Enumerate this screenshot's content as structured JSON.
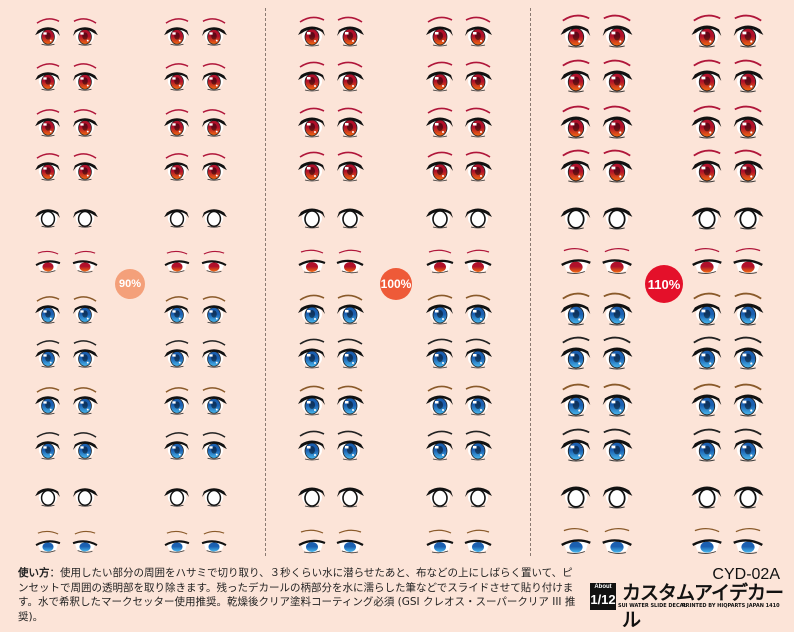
{
  "sections": [
    {
      "badge": "90%",
      "badge_color": "#f4a07a",
      "scale": 0.92
    },
    {
      "badge": "100%",
      "badge_color": "#ee5a38",
      "scale": 1.0
    },
    {
      "badge": "110%",
      "badge_color": "#e4102a",
      "scale": 1.1
    }
  ],
  "eye_rows": [
    {
      "type": "open",
      "iris": "#b0102a",
      "iris_low": "#f06a10",
      "brow": "#b0163a"
    },
    {
      "type": "open",
      "iris": "#b0102a",
      "iris_low": "#f06a10",
      "brow": "#b0163a"
    },
    {
      "type": "open",
      "iris": "#b0102a",
      "iris_low": "#f06a10",
      "brow": "#b0163a"
    },
    {
      "type": "open",
      "iris": "#b0102a",
      "iris_low": "#f06a10",
      "brow": "#b0163a"
    },
    {
      "type": "outline",
      "iris": "#ffffff",
      "iris_low": "#ffffff",
      "brow": "none"
    },
    {
      "type": "half",
      "iris": "#b0102a",
      "iris_low": "#f06a10",
      "brow": "#b0163a"
    },
    {
      "type": "open",
      "iris": "#1a5fb0",
      "iris_low": "#49b8ee",
      "brow": "#8a5a2a"
    },
    {
      "type": "open",
      "iris": "#1a5fb0",
      "iris_low": "#49b8ee",
      "brow": "#222222"
    },
    {
      "type": "open",
      "iris": "#1a5fb0",
      "iris_low": "#49b8ee",
      "brow": "#8a5a2a"
    },
    {
      "type": "open",
      "iris": "#1a5fb0",
      "iris_low": "#49b8ee",
      "brow": "#222222"
    },
    {
      "type": "outline",
      "iris": "#ffffff",
      "iris_low": "#ffffff",
      "brow": "none"
    },
    {
      "type": "half",
      "iris": "#1a5fb0",
      "iris_low": "#49b8ee",
      "brow": "#8a5a2a"
    }
  ],
  "instructions": {
    "label": "使い方",
    "text": "：使用したい部分の周囲をハサミで切り取り、３秒くらい水に潜らせたあと、布などの上にしばらく置いて、ピンセットで周囲の透明部を取り除きます。残ったデカールの柄部分を水に濡らした筆などでスライドさせて貼り付けます。水で希釈したマークセッター使用推奨。乾燥後クリア塗料コーティング必須 (GSI クレオス・スーパークリア III 推奨)。"
  },
  "product": {
    "code": "CYD-02A",
    "scale_top": "About",
    "scale": "1/12",
    "title": "カスタムアイデカール",
    "sub_left": "SUI WATER SLIDE DECAL",
    "sub_right": "PRINTED BY HIQPARTS JAPAN 1410"
  }
}
